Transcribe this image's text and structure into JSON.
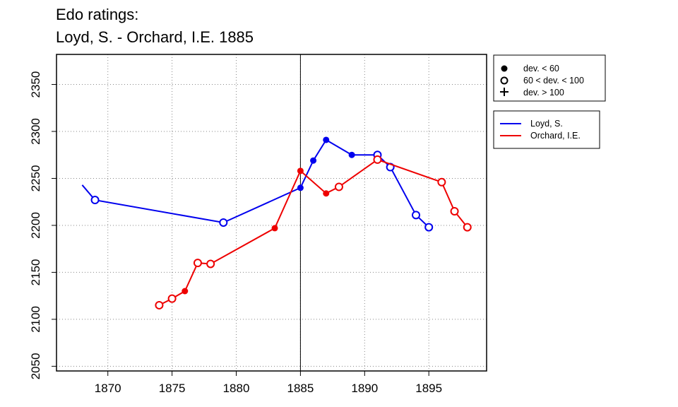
{
  "chart_data": {
    "type": "line",
    "title_lines": [
      "Edo ratings:",
      "Loyd, S. - Orchard, I.E. 1885"
    ],
    "xlabel": "",
    "ylabel": "",
    "xlim": [
      1866,
      1899.5
    ],
    "ylim": [
      2045,
      2382
    ],
    "x_ticks": [
      1870,
      1875,
      1880,
      1885,
      1890,
      1895
    ],
    "y_ticks": [
      2050,
      2100,
      2150,
      2200,
      2250,
      2300,
      2350
    ],
    "grid": true,
    "vline_x": 1885,
    "symbol_legend": [
      {
        "symbol": "filled-circle",
        "label": "dev. < 60"
      },
      {
        "symbol": "open-circle",
        "label": "60 < dev. < 100"
      },
      {
        "symbol": "plus",
        "label": "dev. > 100"
      }
    ],
    "series": [
      {
        "name": "Loyd, S.",
        "color": "#0000ee",
        "points": [
          {
            "x": 1868,
            "y": 2243,
            "marker": "none"
          },
          {
            "x": 1869,
            "y": 2227,
            "marker": "open"
          },
          {
            "x": 1879,
            "y": 2203,
            "marker": "open"
          },
          {
            "x": 1885,
            "y": 2240,
            "marker": "filled"
          },
          {
            "x": 1886,
            "y": 2269,
            "marker": "filled"
          },
          {
            "x": 1887,
            "y": 2291,
            "marker": "filled"
          },
          {
            "x": 1889,
            "y": 2275,
            "marker": "filled"
          },
          {
            "x": 1891,
            "y": 2275,
            "marker": "open"
          },
          {
            "x": 1892,
            "y": 2262,
            "marker": "open"
          },
          {
            "x": 1894,
            "y": 2211,
            "marker": "open"
          },
          {
            "x": 1895,
            "y": 2198,
            "marker": "open"
          }
        ]
      },
      {
        "name": "Orchard, I.E.",
        "color": "#ee0000",
        "points": [
          {
            "x": 1874,
            "y": 2115,
            "marker": "open"
          },
          {
            "x": 1875,
            "y": 2122,
            "marker": "open"
          },
          {
            "x": 1876,
            "y": 2130,
            "marker": "filled"
          },
          {
            "x": 1877,
            "y": 2160,
            "marker": "open"
          },
          {
            "x": 1878,
            "y": 2159,
            "marker": "open"
          },
          {
            "x": 1883,
            "y": 2197,
            "marker": "filled"
          },
          {
            "x": 1885,
            "y": 2258,
            "marker": "filled"
          },
          {
            "x": 1887,
            "y": 2234,
            "marker": "filled"
          },
          {
            "x": 1888,
            "y": 2241,
            "marker": "open"
          },
          {
            "x": 1891,
            "y": 2270,
            "marker": "open"
          },
          {
            "x": 1896,
            "y": 2246,
            "marker": "open"
          },
          {
            "x": 1897,
            "y": 2215,
            "marker": "open"
          },
          {
            "x": 1898,
            "y": 2198,
            "marker": "open"
          }
        ]
      }
    ]
  }
}
